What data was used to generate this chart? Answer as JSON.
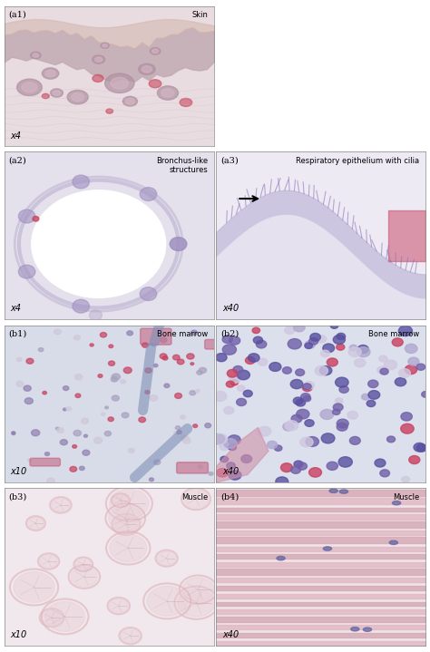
{
  "bg_color": "#ffffff",
  "panels": [
    {
      "id": "a1",
      "label": "(a1)",
      "magnification": "x4",
      "title": "Skin",
      "row": 0,
      "col": 0
    },
    {
      "id": "a2",
      "label": "(a2)",
      "magnification": "x4",
      "title": "Bronchus-like\nstructures",
      "row": 1,
      "col": 0
    },
    {
      "id": "a3",
      "label": "(a3)",
      "magnification": "x40",
      "title": "Respiratory epithelium with cilia",
      "row": 1,
      "col": 1
    },
    {
      "id": "b1",
      "label": "(b1)",
      "magnification": "x10",
      "title": "Bone marrow",
      "row": 2,
      "col": 0
    },
    {
      "id": "b2",
      "label": "(b2)",
      "magnification": "x40",
      "title": "Bone marrow",
      "row": 2,
      "col": 1
    },
    {
      "id": "b3",
      "label": "(b3)",
      "magnification": "x10",
      "title": "Muscle",
      "row": 3,
      "col": 0
    },
    {
      "id": "b4",
      "label": "(b4)",
      "magnification": "x40",
      "title": "Muscle",
      "row": 3,
      "col": 1
    }
  ],
  "panel_colors": {
    "a1": {
      "base": "#c8a8b8",
      "detail1": "#b89098",
      "detail2": "#d4b8c0",
      "light": "#e8dce0"
    },
    "a2": {
      "base": "#c0b8d0",
      "detail1": "#a8a0c0",
      "detail2": "#d0c8dc",
      "light": "#e8e4f0"
    },
    "a3": {
      "base": "#c8c0d8",
      "detail1": "#b0a8c8",
      "detail2": "#d8d0e4",
      "light": "#eceaf4"
    },
    "b1": {
      "base": "#b8bcd0",
      "detail1": "#a0a4c0",
      "detail2": "#c8ccd8",
      "light": "#dcdee8"
    },
    "b2": {
      "base": "#b8bcd0",
      "detail1": "#a0a4c0",
      "detail2": "#c8ccd8",
      "light": "#dcdee8"
    },
    "b3": {
      "base": "#d0b8c0",
      "detail1": "#c0a0ac",
      "detail2": "#dcc8cc",
      "light": "#f0e4e8"
    },
    "b4": {
      "base": "#d0b8c0",
      "detail1": "#c0a0ac",
      "detail2": "#dcc8cc",
      "light": "#f0e4e8"
    }
  }
}
